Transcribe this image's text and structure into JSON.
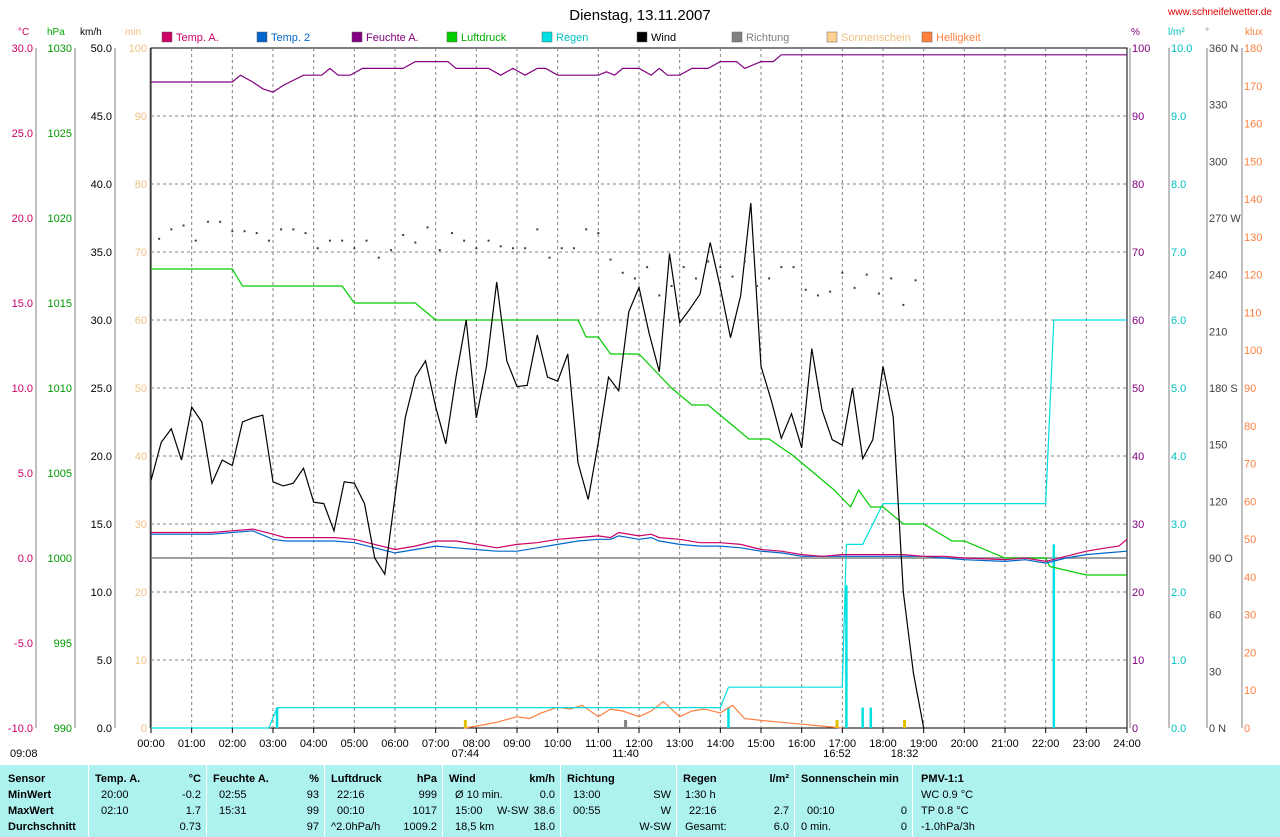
{
  "title": "Dienstag, 13.11.2007",
  "site": "www.schneifelwetter.de",
  "legend": [
    {
      "key": "temp_a",
      "label": "Temp. A.",
      "color": "#cc0066"
    },
    {
      "key": "temp_2",
      "label": "Temp. 2",
      "color": "#0066cc"
    },
    {
      "key": "feuchte",
      "label": "Feuchte A.",
      "color": "#800080"
    },
    {
      "key": "luftdruck",
      "label": "Luftdruck",
      "color": "#00cc00"
    },
    {
      "key": "regen",
      "label": "Regen",
      "color": "#00e0e0"
    },
    {
      "key": "wind",
      "label": "Wind",
      "color": "#000000"
    },
    {
      "key": "richtung",
      "label": "Richtung",
      "color": "#808080"
    },
    {
      "key": "sonnenschein",
      "label": "Sonnenschein",
      "color": "#ffd090"
    },
    {
      "key": "helligkeit",
      "label": "Helligkeit",
      "color": "#ff7f3f"
    }
  ],
  "unit_labels": {
    "temp": "°C",
    "hpa": "hPa",
    "kmh": "km/h",
    "min": "min",
    "pct": "%",
    "rain": "l/m²",
    "dir": "°",
    "klux": "klux"
  },
  "axis_left": {
    "temp": [
      "30.0",
      "25.0",
      "20.0",
      "15.0",
      "10.0",
      "5.0",
      "0.0",
      "-5.0",
      "-10.0"
    ],
    "hpa": [
      "1030",
      "1025",
      "1020",
      "1015",
      "1010",
      "1005",
      "1000",
      "995",
      "990"
    ],
    "kmh": [
      "50.0",
      "45.0",
      "40.0",
      "35.0",
      "30.0",
      "25.0",
      "20.0",
      "15.0",
      "10.0",
      "5.0",
      "0.0"
    ],
    "min": [
      "100",
      "90",
      "80",
      "70",
      "60",
      "50",
      "40",
      "30",
      "20",
      "10",
      "0"
    ]
  },
  "axis_right": {
    "pct": [
      "100",
      "90",
      "80",
      "70",
      "60",
      "50",
      "40",
      "30",
      "20",
      "10",
      "0"
    ],
    "rain": [
      "10.0",
      "9.0",
      "8.0",
      "7.0",
      "6.0",
      "5.0",
      "4.0",
      "3.0",
      "2.0",
      "1.0",
      "0.0"
    ],
    "dir": [
      "360 N",
      "330",
      "300",
      "270 W",
      "240",
      "210",
      "180 S",
      "150",
      "120",
      "90 O",
      "60",
      "30",
      "0 N"
    ],
    "klux": [
      "180",
      "170",
      "160",
      "150",
      "140",
      "130",
      "120",
      "110",
      "100",
      "90",
      "80",
      "70",
      "60",
      "50",
      "40",
      "30",
      "20",
      "10",
      "0"
    ]
  },
  "x_ticks": [
    "00:00",
    "01:00",
    "02:00",
    "03:00",
    "04:00",
    "05:00",
    "06:00",
    "07:00",
    "08:00",
    "09:00",
    "10:00",
    "11:00",
    "12:00",
    "13:00",
    "14:00",
    "15:00",
    "16:00",
    "17:00",
    "18:00",
    "19:00",
    "20:00",
    "21:00",
    "22:00",
    "23:00",
    "24:00"
  ],
  "sun_markers": [
    {
      "label": "09:08",
      "h": 9.13,
      "kind": "moonrise"
    },
    {
      "label": "07:44",
      "h": 7.73,
      "kind": "sunrise"
    },
    {
      "label": "11:40",
      "h": 11.67,
      "kind": "noon"
    },
    {
      "label": "16:52",
      "h": 16.87,
      "kind": "sunset"
    },
    {
      "label": "18:32",
      "h": 18.53,
      "kind": "moonset"
    }
  ],
  "chart_data": {
    "type": "line",
    "title": "Dienstag, 13.11.2007",
    "x_unit": "hour",
    "xlim": [
      0,
      24
    ],
    "series": [
      {
        "name": "Wind",
        "axis": "kmh",
        "color": "#000000",
        "x": [
          0,
          0.25,
          0.5,
          0.75,
          1,
          1.25,
          1.5,
          1.75,
          2,
          2.25,
          2.5,
          2.75,
          3,
          3.25,
          3.5,
          3.75,
          4,
          4.25,
          4.5,
          4.75,
          5,
          5.25,
          5.5,
          5.75,
          6,
          6.25,
          6.5,
          6.75,
          7,
          7.25,
          7.5,
          7.75,
          8,
          8.25,
          8.5,
          8.75,
          9,
          9.25,
          9.5,
          9.75,
          10,
          10.25,
          10.5,
          10.75,
          11,
          11.25,
          11.5,
          11.75,
          12,
          12.25,
          12.5,
          12.75,
          13,
          13.25,
          13.5,
          13.75,
          14,
          14.25,
          14.5,
          14.75,
          15,
          15.25,
          15.5,
          15.75,
          16,
          16.25,
          16.5,
          16.75,
          17,
          17.25,
          17.5,
          17.75,
          18,
          18.25,
          18.5,
          18.75,
          19
        ],
        "values": [
          18.2,
          21,
          22,
          19.7,
          23.6,
          22.5,
          18,
          19.7,
          19.3,
          22.5,
          22.8,
          23,
          18.1,
          17.8,
          18,
          19.1,
          16.6,
          16.5,
          14.5,
          18.1,
          18,
          16.5,
          12.5,
          11.3,
          17,
          22.8,
          25.8,
          27,
          23.6,
          20.9,
          25.8,
          30,
          22.8,
          26.6,
          32.8,
          27,
          25.1,
          25.2,
          28.9,
          25.8,
          25.5,
          27.5,
          19.5,
          16.8,
          21,
          25.8,
          24.8,
          30.6,
          32.4,
          29,
          26.2,
          34.9,
          29.8,
          30.8,
          31.9,
          35.7,
          32.4,
          28.7,
          31.8,
          38.6,
          26.6,
          24.1,
          21.3,
          23.1,
          20.6,
          27.9,
          23.4,
          21.2,
          20.8,
          25,
          19.8,
          21.2,
          26.6,
          22.9,
          10,
          4,
          0
        ]
      },
      {
        "name": "Feuchte A.",
        "axis": "pct",
        "color": "#800080",
        "x": [
          0,
          2,
          2.2,
          2.5,
          2.75,
          3,
          3.25,
          3.75,
          4.2,
          4.4,
          4.6,
          4.9,
          5.2,
          5.6,
          6.2,
          6.5,
          7.3,
          7.5,
          8.3,
          8.6,
          8.9,
          9.2,
          9.5,
          9.7,
          10,
          10.5,
          11,
          11.2,
          11.4,
          11.6,
          12,
          12.3,
          12.5,
          12.7,
          13,
          13.3,
          13.7,
          14,
          14.4,
          14.6,
          15,
          15.3,
          15.5,
          24
        ],
        "values": [
          95,
          95,
          96,
          95,
          94,
          93.5,
          94.5,
          96,
          96,
          97,
          96,
          96,
          97,
          97,
          97,
          98,
          98,
          97,
          97,
          96,
          97,
          96,
          97,
          97,
          96,
          96,
          96,
          96.5,
          96,
          97,
          97,
          96,
          97,
          96,
          96,
          97,
          97,
          98,
          98,
          97,
          98,
          98,
          99,
          99
        ]
      },
      {
        "name": "Luftdruck",
        "axis": "hpa",
        "color": "#00cc00",
        "x": [
          0,
          2,
          2.25,
          3,
          4.7,
          5,
          6.5,
          7,
          7.8,
          8.2,
          10.5,
          10.7,
          11,
          11.3,
          12,
          12.4,
          12.8,
          13.3,
          13.7,
          14.2,
          14.7,
          15.2,
          15.8,
          16.3,
          16.8,
          17.2,
          17.4,
          17.7,
          18,
          18.5,
          19,
          19.7,
          20,
          21,
          22,
          22.1,
          23,
          24
        ],
        "values": [
          1017,
          1017,
          1016,
          1016,
          1016,
          1015,
          1015,
          1014,
          1014,
          1014,
          1014,
          1013,
          1013,
          1012,
          1012,
          1011,
          1010,
          1009,
          1009,
          1008,
          1007,
          1007,
          1006,
          1005,
          1004,
          1003,
          1004,
          1003,
          1003,
          1002,
          1002,
          1001,
          1001,
          1000,
          1000,
          999.5,
          999,
          999
        ]
      },
      {
        "name": "Temp. A.",
        "axis": "temp",
        "color": "#cc0066",
        "x": [
          0,
          1.5,
          2,
          2.5,
          3,
          3.3,
          4,
          4.5,
          5,
          5.5,
          6,
          6.5,
          7,
          7.5,
          8,
          8.5,
          9,
          9.5,
          10,
          10.5,
          11,
          11.3,
          11.5,
          12,
          12.3,
          12.5,
          13,
          13.5,
          14,
          14.5,
          15,
          15.5,
          16,
          16.5,
          17,
          17.5,
          18,
          18.5,
          19,
          19.5,
          20,
          21,
          21.5,
          22,
          22.5,
          23,
          23.5,
          23.8,
          24
        ],
        "values": [
          1.5,
          1.5,
          1.6,
          1.7,
          1.4,
          1.2,
          1.2,
          1.2,
          1.1,
          0.8,
          0.5,
          0.7,
          1,
          1,
          0.8,
          0.6,
          0.8,
          0.9,
          1.1,
          1.2,
          1.3,
          1.2,
          1.5,
          1.3,
          1.4,
          1.2,
          1.1,
          0.9,
          0.9,
          0.8,
          0.5,
          0.4,
          0.2,
          0.1,
          0.2,
          0.2,
          0.2,
          0.2,
          0.1,
          0.1,
          0,
          -0.1,
          0,
          -0.2,
          0.1,
          0.4,
          0.6,
          0.7,
          1.1
        ]
      },
      {
        "name": "Temp. 2",
        "axis": "temp",
        "color": "#0066cc",
        "x": [
          0,
          1.5,
          2,
          2.5,
          3,
          3.3,
          4,
          4.5,
          5,
          5.5,
          6,
          6.5,
          7,
          7.5,
          8,
          8.5,
          9,
          9.5,
          10,
          10.5,
          11,
          11.3,
          11.5,
          12,
          12.3,
          12.5,
          13,
          13.5,
          14,
          14.5,
          15,
          15.5,
          16,
          16.5,
          17,
          17.5,
          18,
          18.5,
          19,
          19.5,
          20,
          21,
          21.5,
          22,
          22.5,
          23,
          23.5,
          24
        ],
        "values": [
          1.4,
          1.4,
          1.5,
          1.6,
          1.1,
          1,
          1,
          1,
          0.9,
          0.6,
          0.3,
          0.5,
          0.7,
          0.6,
          0.5,
          0.4,
          0.4,
          0.6,
          0.8,
          1,
          1.1,
          1.1,
          1.3,
          1.1,
          1.2,
          1,
          0.8,
          0.7,
          0.7,
          0.6,
          0.4,
          0.3,
          0.1,
          0.1,
          0.1,
          0.1,
          0.1,
          0.1,
          0.1,
          0,
          -0.1,
          -0.2,
          -0.1,
          -0.3,
          0,
          0.2,
          0.3,
          0.4
        ]
      },
      {
        "name": "Regen",
        "axis": "rain",
        "color": "#00e0e0",
        "x": [
          0,
          2.9,
          3.1,
          14,
          14.2,
          17,
          17.1,
          17.5,
          18,
          19,
          22,
          22.2,
          24
        ],
        "values": [
          0,
          0,
          0.3,
          0.3,
          0.6,
          0.6,
          2.7,
          2.7,
          3.3,
          3.3,
          3.3,
          6,
          6
        ]
      },
      {
        "name": "Helligkeit",
        "axis": "klux",
        "color": "#ff7f3f",
        "x": [
          7.7,
          8,
          8.5,
          9,
          9.3,
          9.6,
          10,
          10.3,
          10.6,
          11,
          11.3,
          11.6,
          12,
          12.3,
          12.6,
          13,
          13.3,
          13.6,
          14,
          14.3,
          14.6,
          15,
          15.5,
          16,
          16.5,
          17
        ],
        "values": [
          0,
          0.5,
          1.5,
          3,
          2.5,
          4,
          5.5,
          5,
          6,
          3,
          5,
          4.5,
          3,
          4.5,
          7,
          3,
          4.5,
          5,
          4,
          6,
          2.5,
          2,
          1.5,
          1,
          0.5,
          0
        ]
      },
      {
        "name": "Richtung",
        "axis": "dir",
        "color": "#404040",
        "style": "dots",
        "x": [
          0.2,
          0.5,
          0.8,
          1.1,
          1.4,
          1.7,
          2,
          2.3,
          2.6,
          2.9,
          3.2,
          3.5,
          3.8,
          4.1,
          4.4,
          4.7,
          5,
          5.3,
          5.6,
          5.9,
          6.2,
          6.5,
          6.8,
          7.1,
          7.4,
          7.7,
          8,
          8.3,
          8.6,
          8.9,
          9.2,
          9.5,
          9.8,
          10.1,
          10.4,
          10.7,
          11,
          11.3,
          11.6,
          11.9,
          12.2,
          12.5,
          12.8,
          13.1,
          13.4,
          13.7,
          14,
          14.3,
          14.6,
          14.9,
          15.2,
          15.5,
          15.8,
          16.1,
          16.4,
          16.7,
          17,
          17.3,
          17.6,
          17.9,
          18.2,
          18.5,
          18.8
        ],
        "values": [
          259,
          264,
          266,
          258,
          268,
          268,
          263,
          263,
          262,
          258,
          264,
          264,
          262,
          254,
          258,
          258,
          254,
          258,
          249,
          253,
          261,
          257,
          265,
          253,
          262,
          258,
          254,
          258,
          255,
          254,
          254,
          264,
          249,
          254,
          254,
          264,
          262,
          248,
          241,
          238,
          244,
          229,
          234,
          244,
          238,
          247,
          244,
          239,
          247,
          234,
          238,
          244,
          244,
          232,
          229,
          231,
          241,
          233,
          240,
          230,
          238,
          224,
          237
        ]
      }
    ],
    "rain_bars": {
      "axis": "rain",
      "x": [
        3.1,
        14.2,
        17.1,
        17.5,
        17.7,
        22.2
      ],
      "values": [
        0.3,
        0.3,
        2.1,
        0.3,
        0.3,
        2.7
      ]
    }
  },
  "summary": {
    "headers": {
      "sensor": "Sensor",
      "temp": "Temp. A.",
      "temp_unit": "°C",
      "feuchte": "Feuchte A.",
      "feuchte_unit": "%",
      "luft": "Luftdruck",
      "luft_unit": "hPa",
      "wind": "Wind",
      "wind_unit": "km/h",
      "richtung": "Richtung",
      "regen": "Regen",
      "regen_unit": "l/m²",
      "sonne": "Sonnenschein min",
      "pmv": "PMV-1:1"
    },
    "row_labels": [
      "MinWert",
      "MaxWert",
      "Durchschnitt"
    ],
    "temp": [
      [
        "20:00",
        "-0.2"
      ],
      [
        "02:10",
        "1.7"
      ],
      [
        "",
        "0.73"
      ]
    ],
    "feuchte": [
      [
        "02:55",
        "93"
      ],
      [
        "15:31",
        "99"
      ],
      [
        "",
        "97"
      ]
    ],
    "luft": [
      [
        "22:16",
        "999"
      ],
      [
        "00:10",
        "1017"
      ],
      [
        "^2.0hPa/h",
        "1009.2"
      ]
    ],
    "wind": [
      [
        "Ø 10 min.",
        "",
        "0.0"
      ],
      [
        "15:00",
        "W-SW",
        "38.6"
      ],
      [
        "18,5 km",
        "",
        "18.0"
      ]
    ],
    "richtung": [
      [
        "13:00",
        "SW"
      ],
      [
        "00:55",
        "W"
      ],
      [
        "",
        "W-SW"
      ]
    ],
    "regen": [
      [
        "1:30 h",
        ""
      ],
      [
        "22:16",
        "2.7"
      ],
      [
        "Gesamt:",
        "6.0"
      ]
    ],
    "sonne": [
      [
        "",
        ""
      ],
      [
        "00:10",
        "0"
      ],
      [
        "0 min.",
        "0"
      ]
    ],
    "pmv": [
      "WC 0.9 °C",
      "TP 0.8 °C",
      "-1.0hPa/3h"
    ]
  }
}
